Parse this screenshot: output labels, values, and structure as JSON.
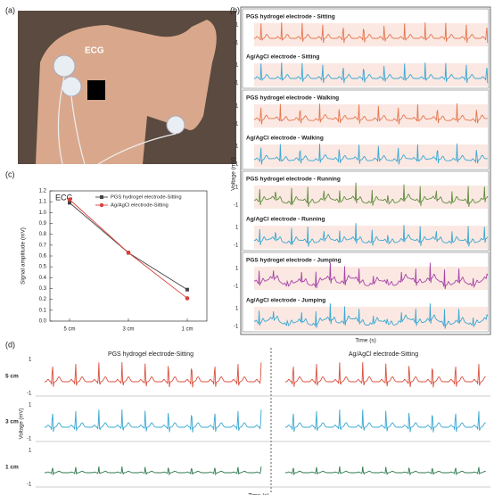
{
  "panels": {
    "a": "(a)",
    "b": "(b)",
    "c": "(c)",
    "d": "(d)"
  },
  "photo": {
    "label": "ECG"
  },
  "traces": {
    "ylabel": "Voltage (mV)",
    "xlabel": "Time (s)",
    "rows": [
      {
        "title": "PGS hydrogel electrode - Sitting",
        "color": "#e4774f",
        "tick_top": "1",
        "tick_bottom": "-1"
      },
      {
        "title": "Ag/AgCl electrode - Sitting",
        "color": "#3aa8d2",
        "tick_top": "1",
        "tick_bottom": "-1"
      },
      {
        "title": "PGS hydrogel electrode - Walking",
        "color": "#e4774f",
        "tick_top": "1",
        "tick_bottom": "-1"
      },
      {
        "title": "Ag/AgCl electrode - Walking",
        "color": "#3aa8d2",
        "tick_top": "1",
        "tick_bottom": "-1"
      },
      {
        "title": "PGS hydrogel electrode - Running",
        "color": "#5f8f3e",
        "tick_top": "1",
        "tick_bottom": "-1"
      },
      {
        "title": "Ag/AgCl electrode - Running",
        "color": "#3aa8d2",
        "tick_top": "1",
        "tick_bottom": "-1"
      },
      {
        "title": "PGS hydrogel electrode - Jumping",
        "color": "#a545a8",
        "tick_top": "1",
        "tick_bottom": "-1"
      },
      {
        "title": "Ag/AgCl electrode - Jumping",
        "color": "#3aa8d2",
        "tick_top": "1",
        "tick_bottom": "-1"
      }
    ]
  },
  "chart_data": {
    "type": "line",
    "annotation": "ECG",
    "ylabel": "Signal amplitude (mV)",
    "categories": [
      "5 cm",
      "3 cm",
      "1 cm"
    ],
    "series": [
      {
        "name": "PGS hydrogel electrode-Sitting",
        "color": "#444444",
        "values": [
          1.09,
          0.63,
          0.29
        ]
      },
      {
        "name": "Ag/AgCl electrode-Sitting",
        "color": "#d9403a",
        "values": [
          1.12,
          0.63,
          0.21
        ]
      }
    ],
    "ylim": [
      0,
      1.2
    ],
    "yticks": [
      {
        "value": 0,
        "label": "0.0"
      },
      0.1,
      0.2,
      0.3,
      0.4,
      0.5,
      0.6,
      0.7,
      0.8,
      0.9,
      {
        "value": 1,
        "label": "1.0"
      },
      1.1,
      1.2
    ],
    "legend": "upper right"
  },
  "comparison": {
    "columns": [
      "PGS hydrogel electrode-Sitting",
      "Ag/AgCl electrode-Sitting"
    ],
    "ylabel": "Voltage (mV)",
    "xlabel": "Time (s)",
    "rows": [
      {
        "label": "5 cm",
        "color": "#d9503e",
        "tick_top": "1",
        "tick_bottom": "-1"
      },
      {
        "label": "3 cm",
        "color": "#3aa8d2",
        "tick_top": "1",
        "tick_bottom": "-1"
      },
      {
        "label": "1 cm",
        "color": "#2f7a4f",
        "tick_top": "1",
        "tick_bottom": "-1"
      }
    ]
  }
}
